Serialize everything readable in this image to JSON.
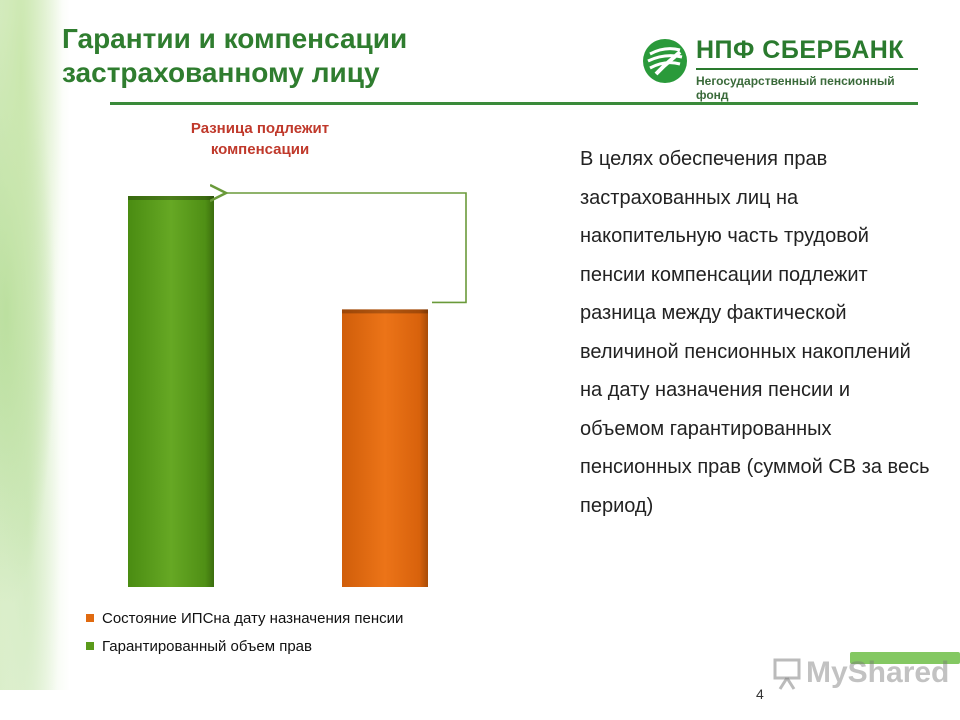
{
  "title": {
    "line1": "Гарантии и компенсации",
    "line2": "застрахованному  лицу"
  },
  "logo": {
    "name": "НПФ СБЕРБАНК",
    "subtitle": "Негосударственный пенсионный фонд",
    "icon": "sberbank-logo-icon"
  },
  "chart_data": {
    "type": "bar",
    "title": "",
    "xlabel": "",
    "ylabel": "",
    "ylim": [
      0,
      100
    ],
    "categories": [
      "",
      ""
    ],
    "bars": [
      {
        "value": 100,
        "color": "#5a9a1a"
      },
      {
        "value": 71,
        "color": "#e06a10"
      }
    ],
    "annotation": "Разница подлежит компенсации",
    "legend": [
      {
        "label": "Состояние ИПСна дату назначения пенсии",
        "color": "#e06a10"
      },
      {
        "label": "Гарантированный объем прав",
        "color": "#5a9a1a"
      }
    ],
    "legend_position": "bottom",
    "grid": false
  },
  "body_text": "В целях обеспечения прав застрахованных лиц на накопительную часть трудовой пенсии компенсации подлежит разница между фактической величиной пенсионных накоплений на дату назначения пенсии и объемом гарантированных пенсионных прав (суммой СВ за весь период)",
  "page_number": "4",
  "watermark": "MyShared",
  "colors": {
    "title": "#2f7d2f",
    "accent_green": "#5a9a1a",
    "accent_orange": "#e06a10",
    "note_red": "#c0392b"
  }
}
